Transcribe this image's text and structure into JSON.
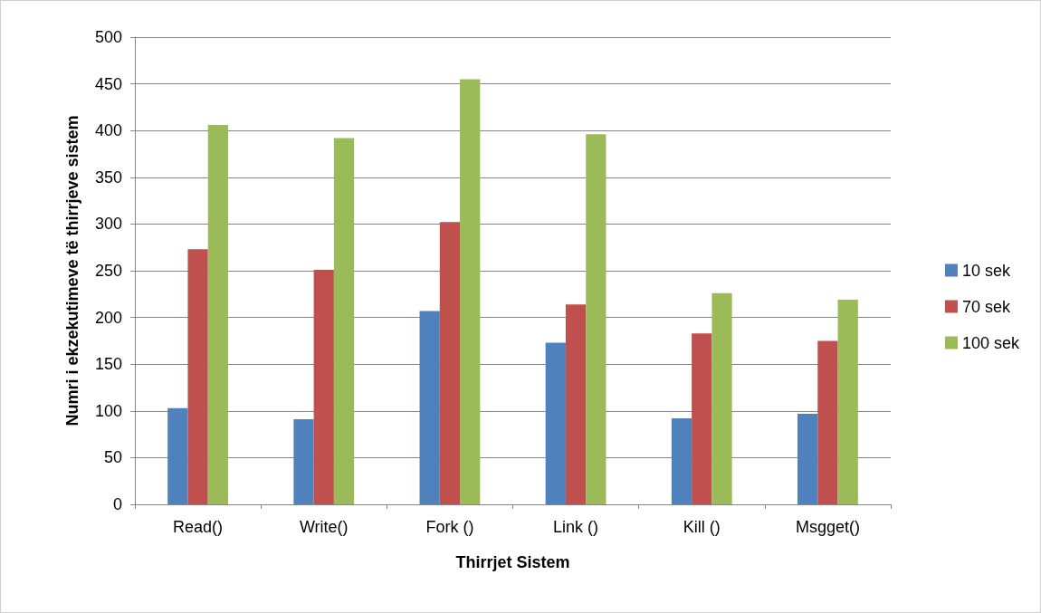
{
  "chart_data": {
    "type": "bar",
    "xlabel": "Thirrjet Sistem",
    "ylabel": "Numri i ekzekutimeve të thirrjeve sistem",
    "categories": [
      "Read()",
      "Write()",
      "Fork ()",
      "Link ()",
      "Kill ()",
      "Msgget()"
    ],
    "series": [
      {
        "name": "10 sek",
        "color": "#4f81bd",
        "values": [
          103,
          91,
          207,
          173,
          92,
          97
        ]
      },
      {
        "name": "70 sek",
        "color": "#c0504d",
        "values": [
          273,
          251,
          302,
          214,
          183,
          175
        ]
      },
      {
        "name": "100 sek",
        "color": "#9bbb59",
        "values": [
          406,
          392,
          455,
          396,
          226,
          219
        ]
      }
    ],
    "ylim": [
      0,
      500
    ],
    "yticks": [
      0,
      50,
      100,
      150,
      200,
      250,
      300,
      350,
      400,
      450,
      500
    ],
    "grid": "y",
    "legend": "right"
  }
}
